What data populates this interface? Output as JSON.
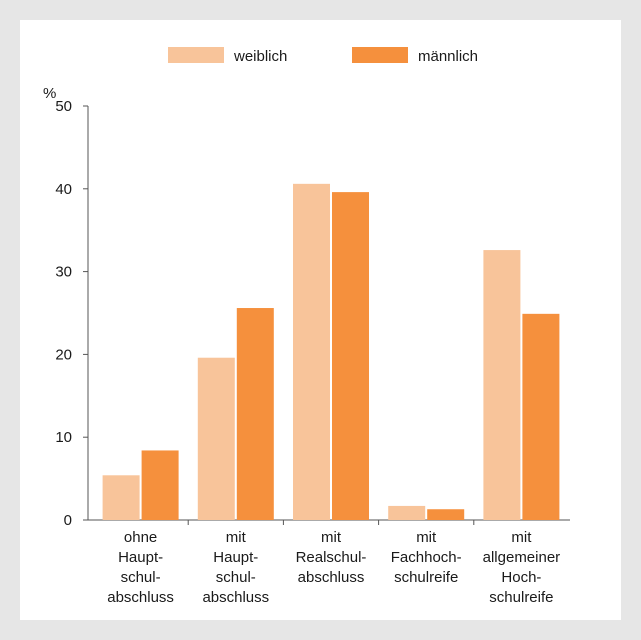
{
  "chart_data": {
    "type": "bar",
    "unit_label": "%",
    "categories": [
      [
        "ohne",
        "Haupt-",
        "schul-",
        "abschluss"
      ],
      [
        "mit",
        "Haupt-",
        "schul-",
        "abschluss"
      ],
      [
        "mit",
        "Realschul-",
        "abschluss"
      ],
      [
        "mit",
        "Fachhoch-",
        "schulreife"
      ],
      [
        "mit",
        "allgemeiner",
        "Hoch-",
        "schulreife"
      ]
    ],
    "series": [
      {
        "name": "weiblich",
        "color": "#f8c49a",
        "values": [
          5.4,
          19.6,
          40.6,
          1.7,
          32.6
        ]
      },
      {
        "name": "männlich",
        "color": "#f5903d",
        "values": [
          8.4,
          25.6,
          39.6,
          1.3,
          24.9
        ]
      }
    ],
    "ylim": [
      0,
      50
    ],
    "yticks": [
      0,
      10,
      20,
      30,
      40,
      50
    ],
    "grid": false,
    "legend_position": "top"
  }
}
